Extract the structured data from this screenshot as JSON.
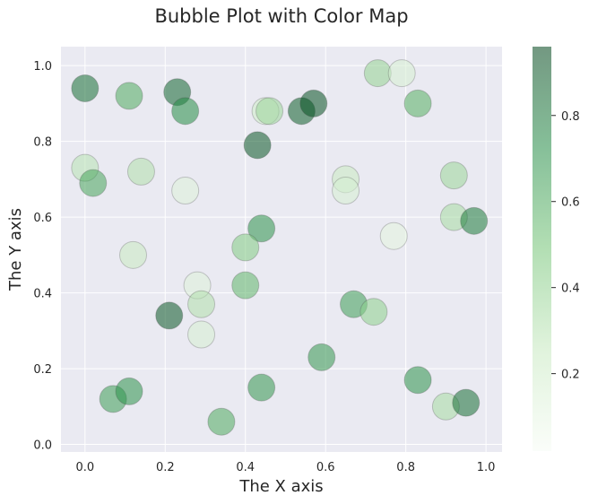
{
  "chart_data": {
    "type": "scatter",
    "title": "Bubble Plot with Color Map",
    "xlabel": "The X axis",
    "ylabel": "The Y axis",
    "xlim": [
      -0.06,
      1.04
    ],
    "ylim": [
      -0.02,
      1.05
    ],
    "x_ticks": [
      "0.0",
      "0.2",
      "0.4",
      "0.6",
      "0.8",
      "1.0"
    ],
    "y_ticks": [
      "0.0",
      "0.2",
      "0.4",
      "0.6",
      "0.8",
      "1.0"
    ],
    "grid": true,
    "colormap": "Greens",
    "colorbar": {
      "range": [
        0.02,
        0.96
      ],
      "ticks": [
        "0.2",
        "0.4",
        "0.6",
        "0.8"
      ]
    },
    "colors": {
      "plot_background": "#eaeaf2",
      "grid": "#ffffff",
      "low": "#f7fcf5",
      "mid": "#74c476",
      "high": "#00441b"
    },
    "points": [
      {
        "x": 0.0,
        "y": 0.94,
        "c": 0.82
      },
      {
        "x": 0.11,
        "y": 0.92,
        "c": 0.6
      },
      {
        "x": 0.23,
        "y": 0.93,
        "c": 0.85
      },
      {
        "x": 0.25,
        "y": 0.88,
        "c": 0.72
      },
      {
        "x": 0.45,
        "y": 0.88,
        "c": 0.22
      },
      {
        "x": 0.46,
        "y": 0.88,
        "c": 0.38
      },
      {
        "x": 0.54,
        "y": 0.88,
        "c": 0.88
      },
      {
        "x": 0.57,
        "y": 0.9,
        "c": 0.92
      },
      {
        "x": 0.73,
        "y": 0.98,
        "c": 0.4
      },
      {
        "x": 0.79,
        "y": 0.98,
        "c": 0.18
      },
      {
        "x": 0.83,
        "y": 0.9,
        "c": 0.58
      },
      {
        "x": 0.43,
        "y": 0.79,
        "c": 0.9
      },
      {
        "x": 0.0,
        "y": 0.73,
        "c": 0.3
      },
      {
        "x": 0.02,
        "y": 0.69,
        "c": 0.62
      },
      {
        "x": 0.14,
        "y": 0.72,
        "c": 0.32
      },
      {
        "x": 0.25,
        "y": 0.67,
        "c": 0.15
      },
      {
        "x": 0.65,
        "y": 0.7,
        "c": 0.25
      },
      {
        "x": 0.65,
        "y": 0.67,
        "c": 0.18
      },
      {
        "x": 0.92,
        "y": 0.71,
        "c": 0.38
      },
      {
        "x": 0.92,
        "y": 0.6,
        "c": 0.35
      },
      {
        "x": 0.97,
        "y": 0.59,
        "c": 0.78
      },
      {
        "x": 0.77,
        "y": 0.55,
        "c": 0.12
      },
      {
        "x": 0.44,
        "y": 0.57,
        "c": 0.7
      },
      {
        "x": 0.4,
        "y": 0.52,
        "c": 0.45
      },
      {
        "x": 0.12,
        "y": 0.5,
        "c": 0.25
      },
      {
        "x": 0.28,
        "y": 0.42,
        "c": 0.15
      },
      {
        "x": 0.29,
        "y": 0.37,
        "c": 0.32
      },
      {
        "x": 0.4,
        "y": 0.42,
        "c": 0.55
      },
      {
        "x": 0.21,
        "y": 0.34,
        "c": 0.9
      },
      {
        "x": 0.67,
        "y": 0.37,
        "c": 0.65
      },
      {
        "x": 0.72,
        "y": 0.35,
        "c": 0.42
      },
      {
        "x": 0.29,
        "y": 0.29,
        "c": 0.18
      },
      {
        "x": 0.59,
        "y": 0.23,
        "c": 0.68
      },
      {
        "x": 0.83,
        "y": 0.17,
        "c": 0.7
      },
      {
        "x": 0.07,
        "y": 0.12,
        "c": 0.65
      },
      {
        "x": 0.11,
        "y": 0.14,
        "c": 0.7
      },
      {
        "x": 0.44,
        "y": 0.15,
        "c": 0.68
      },
      {
        "x": 0.9,
        "y": 0.1,
        "c": 0.35
      },
      {
        "x": 0.95,
        "y": 0.11,
        "c": 0.82
      },
      {
        "x": 0.34,
        "y": 0.06,
        "c": 0.6
      }
    ]
  }
}
